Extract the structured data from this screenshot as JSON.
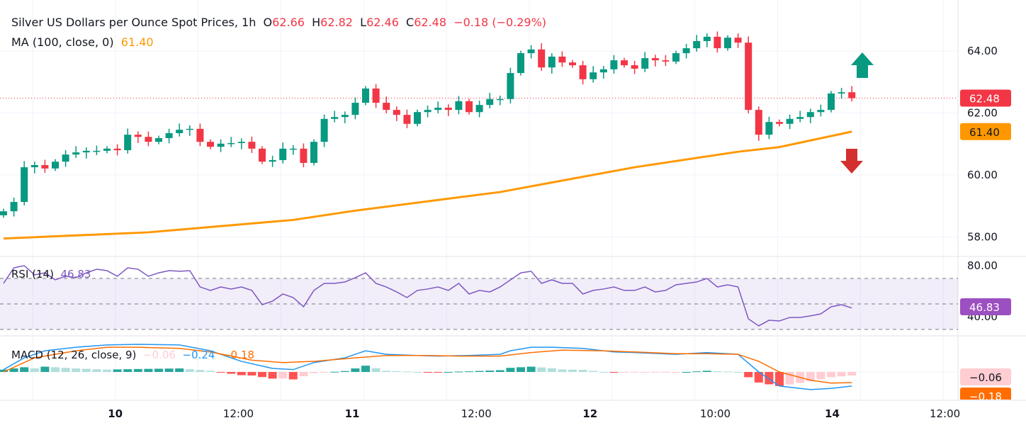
{
  "header": {
    "symbol_title": "Silver US Dollars per Ounce Spot Prices, 1h",
    "o_label": "O",
    "o_value": "62.66",
    "h_label": "H",
    "h_value": "62.82",
    "l_label": "L",
    "l_value": "62.46",
    "c_label": "C",
    "c_value": "62.48",
    "change": "−0.18 (−0.29%)",
    "ma_label": "MA (100, close, 0)",
    "ma_value": "61.40"
  },
  "rsi_legend": {
    "label": "RSI (14)",
    "value": "46.83"
  },
  "macd_legend": {
    "label": "MACD (12, 26, close, 9)",
    "hist": "−0.06",
    "macd": "−0.24",
    "signal": "−0.18"
  },
  "badges": {
    "price": "62.48",
    "ma": "61.40",
    "rsi": "46.83",
    "macd_hist": "−0.06",
    "macd_signal": "−0.18"
  },
  "colors": {
    "up": "#089981",
    "down": "#f23645",
    "ma": "#ff9800",
    "rsi": "#7e57c2",
    "macd": "#2196f3",
    "signal": "#ff6d00"
  },
  "chart_data": {
    "type": "candlestick",
    "title": "Silver US Dollars per Ounce Spot Prices, 1h",
    "first_open": 58.7,
    "closes": [
      58.83,
      59.13,
      60.25,
      60.32,
      60.21,
      60.43,
      60.66,
      60.73,
      60.78,
      60.78,
      60.85,
      60.8,
      61.3,
      61.23,
      61.07,
      61.19,
      61.35,
      61.46,
      61.49,
      61.07,
      60.91,
      61.01,
      61.03,
      61.07,
      60.85,
      60.43,
      60.48,
      60.85,
      60.85,
      60.39,
      61.07,
      61.81,
      61.87,
      61.94,
      62.33,
      62.79,
      62.33,
      62.1,
      61.94,
      61.65,
      62.03,
      62.1,
      62.17,
      62.1,
      62.38,
      62.03,
      62.26,
      62.45,
      62.45,
      63.29,
      63.93,
      64.05,
      63.47,
      63.82,
      63.63,
      63.54,
      63.09,
      63.31,
      63.41,
      63.7,
      63.54,
      63.43,
      63.77,
      63.7,
      63.66,
      63.93,
      64.09,
      64.32,
      64.46,
      64.09,
      64.43,
      64.27,
      62.1,
      61.3,
      61.71,
      61.65,
      61.81,
      61.87,
      62.03,
      62.1,
      62.63,
      62.67,
      62.48
    ],
    "ma100": [
      [
        0,
        57.95
      ],
      [
        14,
        58.15
      ],
      [
        28,
        58.55
      ],
      [
        34,
        58.85
      ],
      [
        48,
        59.45
      ],
      [
        61,
        60.25
      ],
      [
        71,
        60.75
      ],
      [
        75,
        60.9
      ],
      [
        82,
        61.4
      ]
    ],
    "price_axis": {
      "ticks": [
        "64.00",
        "62.00",
        "60.00",
        "58.00"
      ],
      "values": [
        64,
        62,
        60,
        58
      ]
    },
    "rsi": [
      66.1,
      78.3,
      80,
      72.8,
      74.4,
      68.9,
      71.7,
      70.6,
      74.4,
      77.2,
      76.1,
      71.7,
      78.3,
      77.2,
      71.7,
      74.4,
      76.1,
      75.6,
      76.1,
      63.3,
      60.6,
      63.3,
      61.7,
      63.3,
      60.6,
      49.4,
      52.2,
      57.8,
      55,
      47.8,
      60.6,
      66.1,
      66.1,
      67.2,
      70.6,
      74.4,
      66.1,
      63.3,
      59.4,
      55,
      60.6,
      61.7,
      63.3,
      60.6,
      66.1,
      57.8,
      60.6,
      59.4,
      63.3,
      68.9,
      74.4,
      75.6,
      66.1,
      68.9,
      66.1,
      66.1,
      57.8,
      60.6,
      61.7,
      63.3,
      60.6,
      60.6,
      63.3,
      59.4,
      60.6,
      65,
      66.1,
      67.2,
      70,
      63.3,
      65,
      63.3,
      38.3,
      32.8,
      37.2,
      36.7,
      39.4,
      39.4,
      40.6,
      42.2,
      47.8,
      49.4,
      46.83
    ],
    "rsi_axis": {
      "ticks": [
        "80.00",
        "40.00"
      ],
      "values": [
        80,
        40
      ],
      "bands": [
        70,
        50,
        30
      ]
    },
    "macd": [
      [
        0,
        0.04
      ],
      [
        2,
        0.24
      ],
      [
        4,
        0.36
      ],
      [
        7,
        0.42
      ],
      [
        10,
        0.46
      ],
      [
        13,
        0.47
      ],
      [
        17,
        0.46
      ],
      [
        20,
        0.36
      ],
      [
        23,
        0.18
      ],
      [
        26,
        0.06
      ],
      [
        28,
        0.04
      ],
      [
        30,
        0.16
      ],
      [
        33,
        0.24
      ],
      [
        35,
        0.36
      ],
      [
        37,
        0.3
      ],
      [
        40,
        0.28
      ],
      [
        42,
        0.27
      ],
      [
        45,
        0.28
      ],
      [
        48,
        0.3
      ],
      [
        49,
        0.36
      ],
      [
        51,
        0.42
      ],
      [
        53,
        0.42
      ],
      [
        56,
        0.4
      ],
      [
        59,
        0.34
      ],
      [
        61,
        0.33
      ],
      [
        65,
        0.3
      ],
      [
        68,
        0.33
      ],
      [
        71,
        0.3
      ],
      [
        73,
        0.0
      ],
      [
        75,
        -0.24
      ],
      [
        78,
        -0.3
      ],
      [
        80,
        -0.28
      ],
      [
        82,
        -0.24
      ]
    ],
    "signal": [
      [
        0,
        0.0
      ],
      [
        3,
        0.24
      ],
      [
        7,
        0.36
      ],
      [
        10,
        0.42
      ],
      [
        13,
        0.42
      ],
      [
        17,
        0.4
      ],
      [
        20,
        0.34
      ],
      [
        24,
        0.2
      ],
      [
        27,
        0.16
      ],
      [
        30,
        0.18
      ],
      [
        34,
        0.24
      ],
      [
        37,
        0.28
      ],
      [
        41,
        0.28
      ],
      [
        44,
        0.27
      ],
      [
        48,
        0.27
      ],
      [
        51,
        0.33
      ],
      [
        54,
        0.37
      ],
      [
        58,
        0.36
      ],
      [
        61,
        0.34
      ],
      [
        65,
        0.31
      ],
      [
        68,
        0.31
      ],
      [
        71,
        0.3
      ],
      [
        73,
        0.18
      ],
      [
        75,
        0.0
      ],
      [
        78,
        -0.14
      ],
      [
        80,
        -0.19
      ],
      [
        82,
        -0.18
      ]
    ],
    "x_ticks": [
      {
        "label": "10",
        "idx": 10.8
      },
      {
        "label": "12:00",
        "idx": 22.7
      },
      {
        "label": "11",
        "idx": 33.7
      },
      {
        "label": "12:00",
        "idx": 45.7
      },
      {
        "label": "12",
        "idx": 56.7
      },
      {
        "label": "10:00",
        "idx": 68.8
      },
      {
        "label": "14",
        "idx": 80.1
      },
      {
        "label": "12:00",
        "idx": 91.0
      }
    ]
  }
}
